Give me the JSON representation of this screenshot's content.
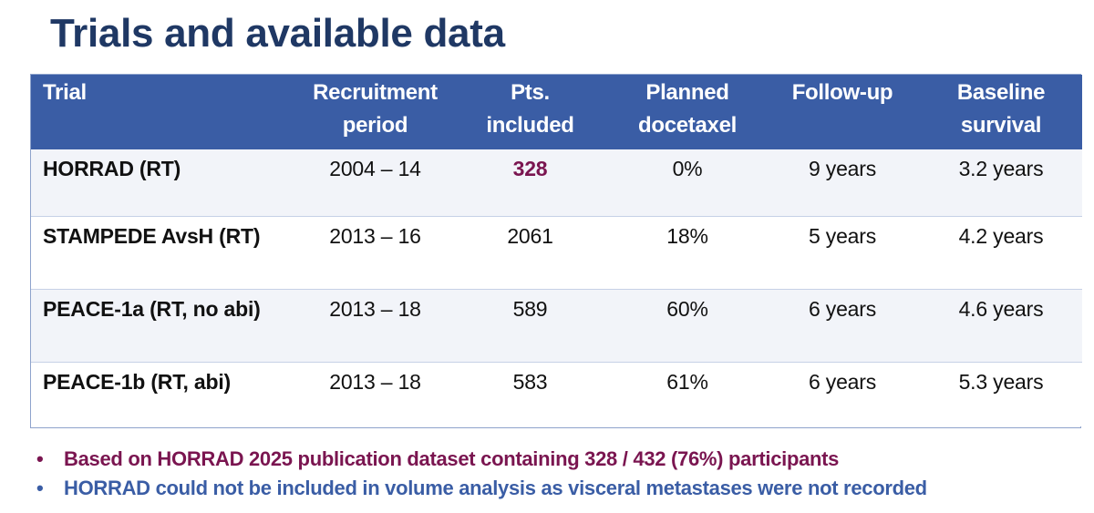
{
  "title": "Trials and available data",
  "table": {
    "headers": {
      "trial": "Trial",
      "recruitment": [
        "Recruitment",
        "period"
      ],
      "pts": [
        "Pts.",
        "included"
      ],
      "docetaxel": [
        "Planned",
        "docetaxel"
      ],
      "followup": "Follow-up",
      "baseline": [
        "Baseline",
        "survival"
      ]
    },
    "rows": [
      {
        "trial": "HORRAD (RT)",
        "recruitment": "2004 – 14",
        "pts": "328",
        "docetaxel": "0%",
        "followup": "9 years",
        "baseline": "3.2 years"
      },
      {
        "trial": "STAMPEDE AvsH (RT)",
        "recruitment": "2013 – 16",
        "pts": "2061",
        "docetaxel": "18%",
        "followup": "5 years",
        "baseline": "4.2 years"
      },
      {
        "trial": "PEACE-1a (RT, no abi)",
        "recruitment": "2013 – 18",
        "pts": "589",
        "docetaxel": "60%",
        "followup": "6 years",
        "baseline": "4.6 years"
      },
      {
        "trial": "PEACE-1b (RT, abi)",
        "recruitment": "2013 – 18",
        "pts": "583",
        "docetaxel": "61%",
        "followup": "6 years",
        "baseline": "5.3 years"
      }
    ]
  },
  "bullets": {
    "marker": "•",
    "items": [
      "Based on HORRAD 2025 publication dataset containing 328 / 432 (76%) participants",
      "HORRAD could not be included in volume analysis as visceral metastases were not recorded"
    ]
  },
  "colors": {
    "title": "#1f3864",
    "header_bg": "#3a5da5",
    "highlight": "#7a1550",
    "bullet1": "#7a1550",
    "bullet2": "#3a5da5"
  }
}
